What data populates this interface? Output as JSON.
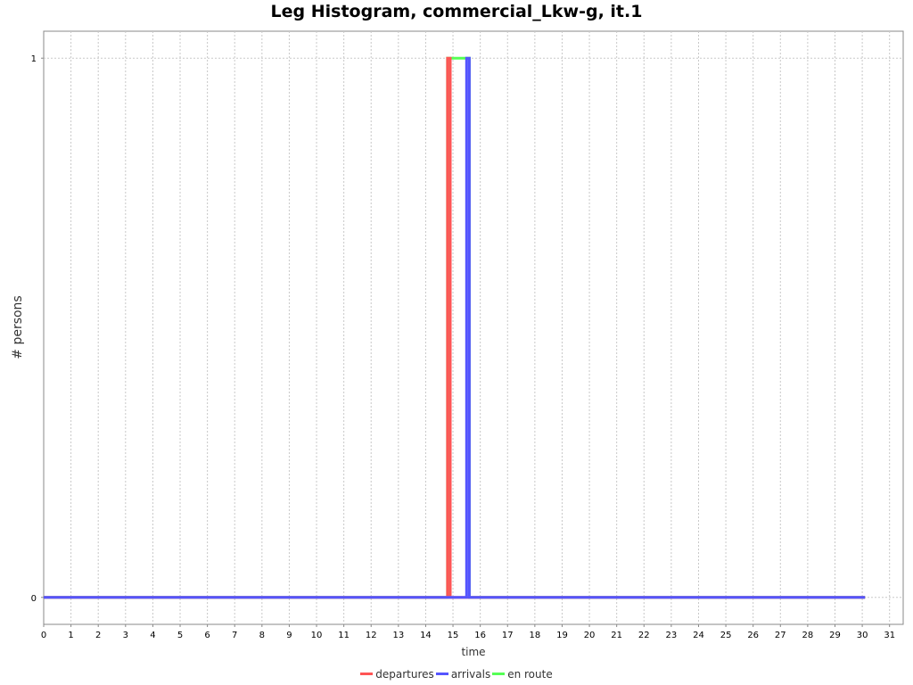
{
  "chart_data": {
    "type": "line",
    "title": "Leg Histogram, commercial_Lkw-g, it.1",
    "xlabel": "time",
    "ylabel": "# persons",
    "xlim": [
      0,
      31.5
    ],
    "ylim": [
      -0.05,
      1.05
    ],
    "x_ticks": [
      "0",
      "1",
      "2",
      "3",
      "4",
      "5",
      "6",
      "7",
      "8",
      "9",
      "10",
      "11",
      "12",
      "13",
      "14",
      "15",
      "16",
      "17",
      "18",
      "19",
      "20",
      "21",
      "22",
      "23",
      "24",
      "25",
      "26",
      "27",
      "28",
      "29",
      "30",
      "31"
    ],
    "y_ticks": [
      "0",
      "1"
    ],
    "grid": true,
    "legend_position": "bottom",
    "series": [
      {
        "name": "departures",
        "color": "#ff5555",
        "points": [
          [
            0,
            0
          ],
          [
            14.8,
            0
          ],
          [
            14.8,
            1
          ],
          [
            14.9,
            1
          ],
          [
            14.9,
            0
          ],
          [
            30.1,
            0
          ]
        ]
      },
      {
        "name": "arrivals",
        "color": "#5555ff",
        "points": [
          [
            0,
            0
          ],
          [
            15.5,
            0
          ],
          [
            15.5,
            1
          ],
          [
            15.6,
            1
          ],
          [
            15.6,
            0
          ],
          [
            30.1,
            0
          ]
        ]
      },
      {
        "name": "en route",
        "color": "#55ff55",
        "points": [
          [
            0,
            0
          ],
          [
            14.8,
            0
          ],
          [
            14.8,
            1
          ],
          [
            15.6,
            1
          ],
          [
            15.6,
            0
          ],
          [
            30.1,
            0
          ]
        ]
      }
    ]
  }
}
